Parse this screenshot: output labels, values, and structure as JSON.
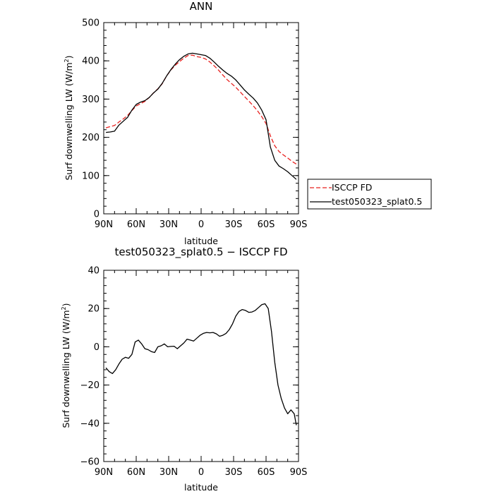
{
  "chart_data": [
    {
      "type": "line",
      "title": "ANN",
      "xlabel": "latitude",
      "ylabel": "Surf downwelling LW (W/m²)",
      "ylabel_main": "Surf downwelling LW (W/m",
      "ylabel_sup": "2",
      "ylabel_close": ")",
      "xlim": [
        90,
        -90
      ],
      "ylim": [
        0,
        500
      ],
      "x_tick_values": [
        90,
        60,
        30,
        0,
        -30,
        -60,
        -90
      ],
      "x_tick_labels": [
        "90N",
        "60N",
        "30N",
        "0",
        "30S",
        "60S",
        "90S"
      ],
      "y_tick_values": [
        0,
        100,
        200,
        300,
        400,
        500
      ],
      "y_tick_labels": [
        "0",
        "100",
        "200",
        "300",
        "400",
        "500"
      ],
      "legend_position": "right",
      "series": [
        {
          "name": "ISCCP FD",
          "color": "#e8201e",
          "style": "dashed",
          "x": [
            88,
            84,
            80,
            76,
            72,
            68,
            64,
            60,
            56,
            52,
            48,
            44,
            40,
            36,
            32,
            28,
            24,
            20,
            16,
            12,
            8,
            4,
            0,
            -4,
            -8,
            -12,
            -16,
            -20,
            -24,
            -28,
            -32,
            -36,
            -40,
            -44,
            -48,
            -52,
            -56,
            -60,
            -64,
            -68,
            -72,
            -76,
            -80,
            -84,
            -88
          ],
          "y": [
            225,
            228,
            231,
            240,
            248,
            257,
            270,
            282,
            288,
            294,
            304,
            316,
            327,
            340,
            360,
            376,
            388,
            398,
            407,
            414,
            415,
            411,
            409,
            405,
            397,
            387,
            376,
            363,
            351,
            341,
            331,
            319,
            307,
            295,
            283,
            270,
            254,
            236,
            204,
            178,
            163,
            154,
            146,
            137,
            130
          ]
        },
        {
          "name": "test050323_splat0.5",
          "color": "#000000",
          "style": "solid",
          "x": [
            88,
            84,
            80,
            76,
            72,
            68,
            64,
            60,
            56,
            52,
            48,
            44,
            40,
            36,
            32,
            28,
            24,
            20,
            16,
            12,
            8,
            4,
            0,
            -4,
            -8,
            -12,
            -16,
            -20,
            -24,
            -28,
            -32,
            -36,
            -40,
            -44,
            -48,
            -52,
            -56,
            -60,
            -64,
            -68,
            -72,
            -76,
            -80,
            -84,
            -88
          ],
          "y": [
            213,
            214,
            216,
            232,
            242,
            252,
            271,
            286,
            292,
            296,
            304,
            316,
            326,
            341,
            360,
            377,
            391,
            403,
            412,
            418,
            420,
            418,
            416,
            414,
            407,
            397,
            386,
            376,
            367,
            360,
            350,
            337,
            324,
            313,
            303,
            290,
            271,
            246,
            175,
            140,
            125,
            118,
            110,
            100,
            90
          ]
        }
      ]
    },
    {
      "type": "line",
      "title": "test050323_splat0.5 − ISCCP FD",
      "xlabel": "latitude",
      "ylabel": "Surf downwelling LW (W/m²)",
      "ylabel_main": "Surf downwelling LW (W/m",
      "ylabel_sup": "2",
      "ylabel_close": ")",
      "xlim": [
        90,
        -90
      ],
      "ylim": [
        -60,
        40
      ],
      "x_tick_values": [
        90,
        60,
        30,
        0,
        -30,
        -60,
        -90
      ],
      "x_tick_labels": [
        "90N",
        "60N",
        "30N",
        "0",
        "30S",
        "60S",
        "90S"
      ],
      "y_tick_values": [
        -60,
        -40,
        -20,
        0,
        20,
        40
      ],
      "y_tick_labels": [
        "−60",
        "−40",
        "−20",
        "0",
        "20",
        "40"
      ],
      "series": [
        {
          "color": "#000000",
          "style": "solid",
          "x": [
            88,
            85,
            82,
            79,
            76,
            73,
            70,
            67,
            64,
            61,
            58,
            55,
            52,
            49,
            46,
            43,
            40,
            37,
            34,
            31,
            28,
            25,
            22,
            19,
            16,
            13,
            10,
            7,
            4,
            1,
            -2,
            -5,
            -8,
            -11,
            -14,
            -17,
            -20,
            -23,
            -26,
            -29,
            -32,
            -35,
            -38,
            -41,
            -44,
            -47,
            -50,
            -53,
            -56,
            -59,
            -62,
            -65,
            -68,
            -71,
            -74,
            -77,
            -80,
            -83,
            -86,
            -88
          ],
          "y": [
            -11,
            -13,
            -14,
            -12,
            -9,
            -6.5,
            -5.5,
            -6,
            -4,
            2.5,
            3.5,
            1.5,
            -1,
            -1.5,
            -2.5,
            -3,
            0,
            0.5,
            1.5,
            0,
            0.2,
            0.3,
            -1,
            0.5,
            2,
            4,
            3.5,
            3,
            4.5,
            6,
            7,
            7.5,
            7.3,
            7.5,
            6.8,
            5.5,
            6,
            7,
            9,
            12,
            16,
            18.5,
            19.5,
            19,
            18,
            18.2,
            19,
            20.5,
            22,
            22.5,
            20,
            8,
            -8,
            -20,
            -27,
            -32,
            -35,
            -33,
            -35,
            -41
          ]
        }
      ]
    }
  ]
}
